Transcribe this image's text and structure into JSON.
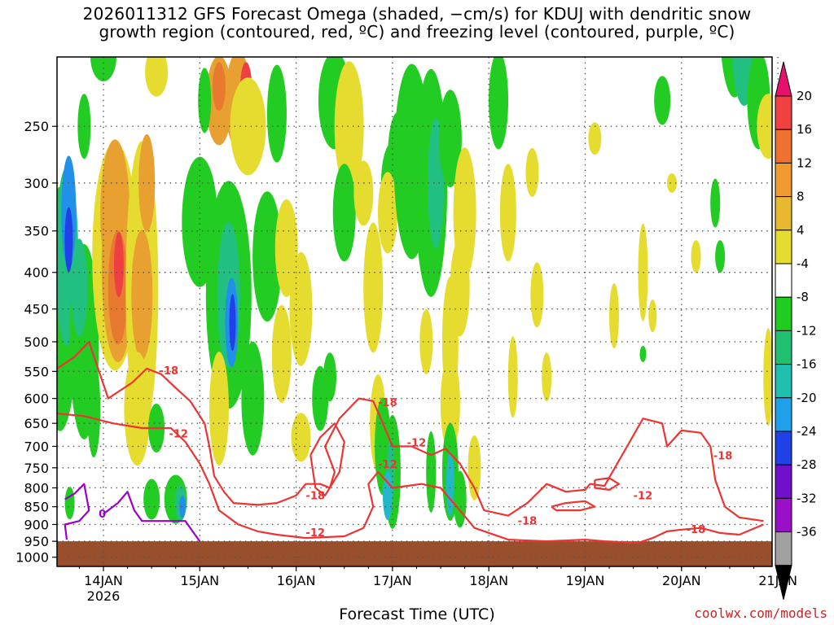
{
  "chart_data": {
    "type": "heatmap",
    "title": "2026011312 GFS Forecast Omega (shaded, −cm/s) for KDUJ with dendritic snow growth region (contoured, red, ºC) and freezing level (contoured, purple, ºC)",
    "title_lines": [
      "2026011312 GFS Forecast Omega (shaded, −cm/s) for KDUJ with dendritic snow",
      "growth region (contoured, red, ºC) and freezing level (contoured, purple, ºC)"
    ],
    "xlabel": "Forecast Time (UTC)",
    "ylabel": "",
    "x_ticks": [
      "14JAN",
      "15JAN",
      "16JAN",
      "17JAN",
      "18JAN",
      "19JAN",
      "20JAN",
      "21JAN"
    ],
    "x_year_label": "2026",
    "xlim": [
      "2026-01-13 12Z",
      "2026-01-21 00Z"
    ],
    "y_ticks": [
      250,
      300,
      350,
      400,
      450,
      500,
      550,
      600,
      650,
      700,
      750,
      800,
      850,
      900,
      950,
      1000
    ],
    "ylim": [
      1030,
      200
    ],
    "y_scale": "log-pressure (reversed)",
    "grid": true,
    "colorbar": {
      "labels": [
        20,
        16,
        12,
        8,
        4,
        -4,
        -8,
        -12,
        -16,
        -20,
        -24,
        -28,
        -32,
        -36
      ],
      "colors": [
        "#e8106c",
        "#f04040",
        "#f07030",
        "#f09a30",
        "#e8b830",
        "#e6dc30",
        "#ffffff",
        "#20cc20",
        "#20c070",
        "#20c0b0",
        "#20a0e8",
        "#2040e8",
        "#7010c8",
        "#9a10c8",
        "#a0a0a0",
        "#000000"
      ]
    },
    "contours": {
      "dendritic_region_labels": [
        "-18",
        "-12",
        "-18",
        "-12",
        "-18",
        "-12",
        "-18",
        "-12",
        "-18",
        "-18",
        "-12",
        "-18"
      ],
      "freezing_level_labels": [
        "0"
      ]
    },
    "omega_features": [
      {
        "label": "green",
        "t": 0.1,
        "p": 400
      },
      {
        "label": "blue core",
        "t": 0.15,
        "p": 360
      },
      {
        "label": "red core",
        "t": 0.7,
        "p": 390
      },
      {
        "label": "orange",
        "t": 1.35,
        "p": 260
      },
      {
        "label": "blue",
        "t": 1.75,
        "p": 430
      }
    ]
  },
  "credit": "coolwx.com/models",
  "colors": {
    "dendritic": "#ee3333",
    "freezing": "#9900cc",
    "terrain": "#9a4f2c",
    "grid": "#555555"
  }
}
